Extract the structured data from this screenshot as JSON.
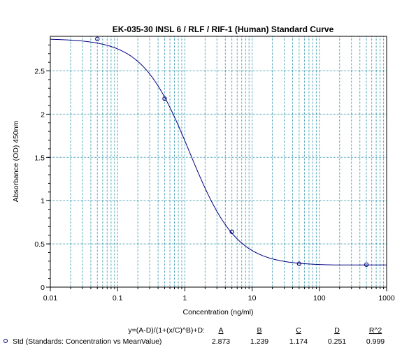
{
  "chart_data": {
    "type": "scatter",
    "title": "EK-035-30 INSL 6 / RLF / RIF-1 (Human) Standard Curve",
    "xlabel": "Concentration (ng/ml)",
    "ylabel": "Absorbance (OD) 450nm",
    "xscale": "log",
    "xlim": [
      0.01,
      1000
    ],
    "ylim": [
      0,
      2.9
    ],
    "x_ticks": [
      0.01,
      0.1,
      1,
      10,
      100,
      1000
    ],
    "x_tick_labels": [
      "0.01",
      "0.1",
      "1",
      "10",
      "100",
      "1000"
    ],
    "y_ticks": [
      0,
      0.5,
      1,
      1.5,
      2,
      2.5
    ],
    "y_tick_labels": [
      "0",
      "0.5",
      "1",
      "1.5",
      "2",
      "2.5"
    ],
    "grid": true,
    "grid_color": "#3a9ab0",
    "curve_color": "#000080",
    "marker_color": "#000080",
    "series": [
      {
        "name": "Std (Standards: Concentration vs MeanValue)",
        "x": [
          0.05,
          0.5,
          5,
          50,
          500
        ],
        "y": [
          2.87,
          2.18,
          0.64,
          0.27,
          0.26
        ]
      }
    ],
    "fit": {
      "equation": "y=(A-D)/(1+(x/C)^B)+D:",
      "headers": [
        "A",
        "B",
        "C",
        "D",
        "R^2"
      ],
      "values": [
        "2.873",
        "1.239",
        "1.174",
        "0.251",
        "0.999"
      ],
      "A": 2.873,
      "B": 1.239,
      "C": 1.174,
      "D": 0.251
    },
    "legend_placement": "bottom"
  }
}
